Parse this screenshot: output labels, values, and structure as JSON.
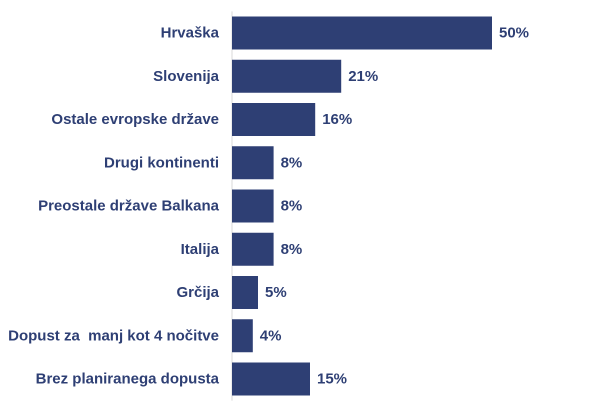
{
  "chart_data": {
    "type": "bar",
    "orientation": "horizontal",
    "categories": [
      "Hrvaška",
      "Slovenija",
      "Ostale evropske države",
      "Drugi kontinenti",
      "Preostale države Balkana",
      "Italija",
      "Grčija",
      "Dopust za  manj kot 4 nočitve",
      "Brez planiranega dopusta"
    ],
    "values": [
      50,
      21,
      16,
      8,
      8,
      8,
      5,
      4,
      15
    ],
    "value_labels": [
      "50%",
      "21%",
      "16%",
      "8%",
      "8%",
      "8%",
      "5%",
      "4%",
      "15%"
    ],
    "unit": "%",
    "title": "",
    "xlabel": "",
    "ylabel": "",
    "xlim": [
      0,
      50
    ],
    "grid": false,
    "legend": "none"
  },
  "colors": {
    "bar": "#2e3f74",
    "text": "#2e3f74",
    "axis": "#d9d9d9",
    "background": "#ffffff"
  }
}
